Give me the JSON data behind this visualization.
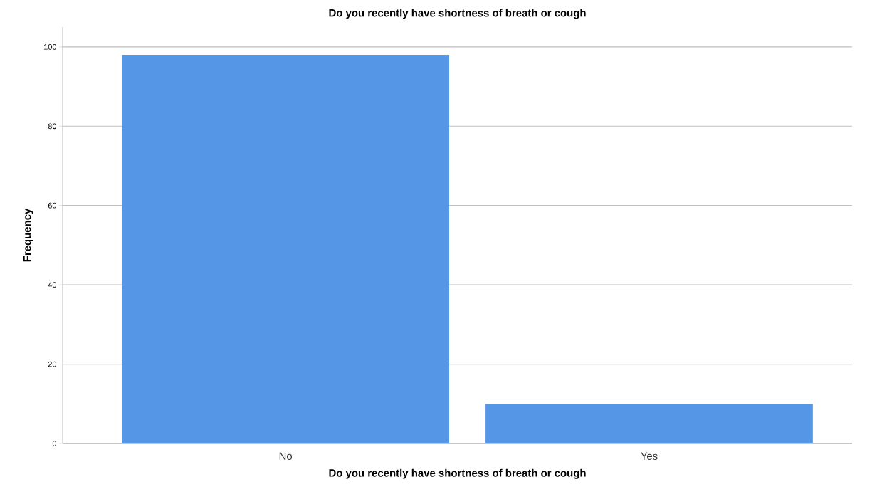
{
  "chart_data": {
    "type": "bar",
    "title": "Do you recently have shortness of breath or cough",
    "xlabel": "Do you recently have shortness of breath or cough",
    "ylabel": "Frequency",
    "categories": [
      "No",
      "Yes"
    ],
    "values": [
      98,
      10
    ],
    "color": "#5596e6",
    "ylim": [
      0,
      105
    ],
    "yticks": [
      0,
      20,
      40,
      60,
      80,
      100
    ],
    "grid": "y"
  }
}
